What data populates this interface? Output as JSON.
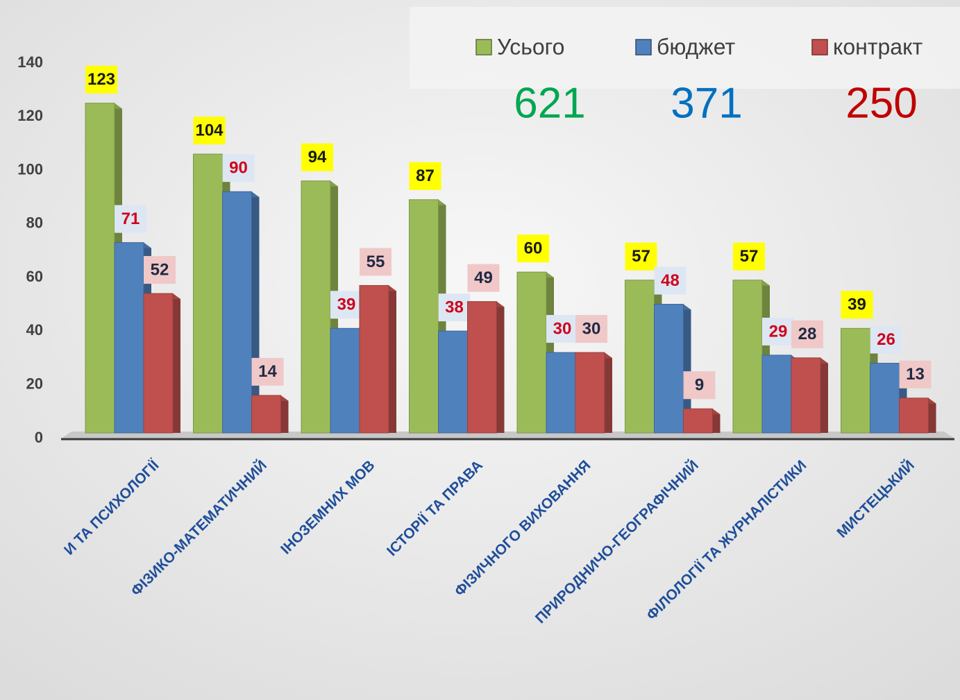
{
  "chart_data": {
    "type": "bar3d",
    "categories": [
      "И ТА ПСИХОЛОГІЇ",
      "ФІЗИКО-МАТЕМАТИЧНИЙ",
      "ІНОЗЕМНИХ МОВ",
      "ІСТОРІЇ ТА ПРАВА",
      "ФІЗИЧНОГО ВИХОВАННЯ",
      "ПРИРОДНИЧО-ГЕОГРАФІЧНИЙ",
      "ФІЛОЛОГІЇ ТА ЖУРНАЛІСТИКИ",
      "МИСТЕЦЬКИЙ"
    ],
    "series": [
      {
        "name": "Усього",
        "color": "#9bbb59",
        "label_bg": "#ffff00",
        "label_color": "#1a1a1a",
        "total": 621,
        "total_color": "#00a651",
        "values": [
          123,
          104,
          94,
          87,
          60,
          57,
          57,
          39
        ]
      },
      {
        "name": "бюджет",
        "color": "#4f81bd",
        "label_bg": "#dde7f3",
        "label_color": "#d0021b",
        "total": 371,
        "total_color": "#0070c0",
        "values": [
          71,
          90,
          39,
          38,
          30,
          48,
          29,
          26
        ]
      },
      {
        "name": "контракт",
        "color": "#c0504d",
        "label_bg": "#f0c8c8",
        "label_color": "#1f2a44",
        "total": 250,
        "total_color": "#c00000",
        "values": [
          52,
          14,
          55,
          49,
          30,
          9,
          28,
          13
        ]
      }
    ],
    "ylim": [
      0,
      140
    ],
    "yticks": [
      0,
      20,
      40,
      60,
      80,
      100,
      120,
      140
    ],
    "legend": "top-right"
  }
}
